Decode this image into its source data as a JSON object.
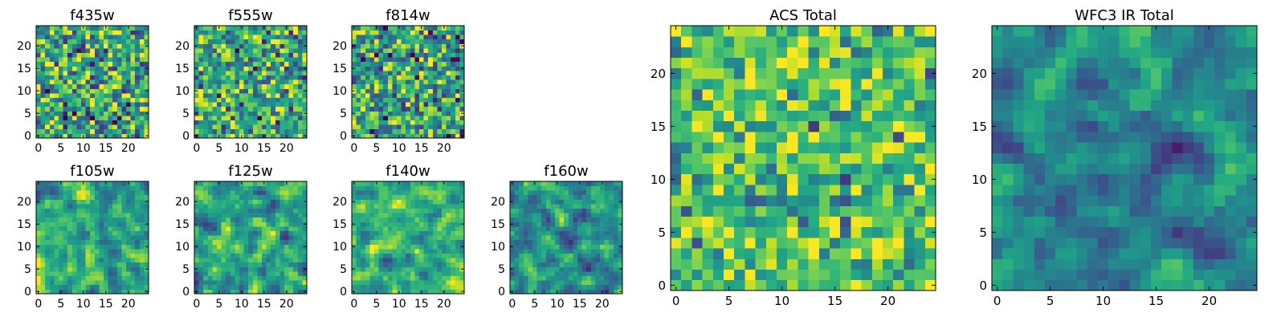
{
  "chart_data": [
    {
      "type": "heatmap",
      "title": "f435w",
      "xticks": [
        "0",
        "5",
        "10",
        "15",
        "20"
      ],
      "yticks": [
        "0",
        "5",
        "10",
        "15",
        "20"
      ],
      "xlim": [
        -0.5,
        24.5
      ],
      "ylim": [
        -0.5,
        24.5
      ],
      "colormap": "viridis",
      "vrange": [
        -3,
        3
      ],
      "grid": false
    },
    {
      "type": "heatmap",
      "title": "f555w",
      "xticks": [
        "0",
        "5",
        "10",
        "15",
        "20"
      ],
      "yticks": [
        "0",
        "5",
        "10",
        "15",
        "20"
      ],
      "xlim": [
        -0.5,
        24.5
      ],
      "ylim": [
        -0.5,
        24.5
      ],
      "colormap": "viridis",
      "vrange": [
        -3,
        3
      ],
      "grid": false
    },
    {
      "type": "heatmap",
      "title": "f814w",
      "xticks": [
        "0",
        "5",
        "10",
        "15",
        "20"
      ],
      "yticks": [
        "0",
        "5",
        "10",
        "15",
        "20"
      ],
      "xlim": [
        -0.5,
        24.5
      ],
      "ylim": [
        -0.5,
        24.5
      ],
      "colormap": "viridis",
      "vrange": [
        -3,
        3
      ],
      "grid": false
    },
    {
      "type": "heatmap",
      "title": "f105w",
      "xticks": [
        "0",
        "5",
        "10",
        "15",
        "20"
      ],
      "yticks": [
        "0",
        "5",
        "10",
        "15",
        "20"
      ],
      "xlim": [
        -0.5,
        24.5
      ],
      "ylim": [
        -0.5,
        24.5
      ],
      "colormap": "viridis",
      "vrange": [
        -3,
        3
      ],
      "grid": false
    },
    {
      "type": "heatmap",
      "title": "f125w",
      "xticks": [
        "0",
        "5",
        "10",
        "15",
        "20"
      ],
      "yticks": [
        "0",
        "5",
        "10",
        "15",
        "20"
      ],
      "xlim": [
        -0.5,
        24.5
      ],
      "ylim": [
        -0.5,
        24.5
      ],
      "colormap": "viridis",
      "vrange": [
        -3,
        3
      ],
      "grid": false
    },
    {
      "type": "heatmap",
      "title": "f140w",
      "xticks": [
        "0",
        "5",
        "10",
        "15",
        "20"
      ],
      "yticks": [
        "0",
        "5",
        "10",
        "15",
        "20"
      ],
      "xlim": [
        -0.5,
        24.5
      ],
      "ylim": [
        -0.5,
        24.5
      ],
      "colormap": "viridis",
      "vrange": [
        -3,
        3
      ],
      "grid": false
    },
    {
      "type": "heatmap",
      "title": "f160w",
      "xticks": [
        "0",
        "5",
        "10",
        "15",
        "20"
      ],
      "yticks": [
        "0",
        "5",
        "10",
        "15",
        "20"
      ],
      "xlim": [
        -0.5,
        24.5
      ],
      "ylim": [
        -0.5,
        24.5
      ],
      "colormap": "viridis",
      "vrange": [
        -3,
        3
      ],
      "grid": false
    },
    {
      "type": "heatmap",
      "title": "ACS Total",
      "xticks": [
        "0",
        "5",
        "10",
        "15",
        "20"
      ],
      "yticks": [
        "0",
        "5",
        "10",
        "15",
        "20"
      ],
      "xlim": [
        -0.5,
        24.5
      ],
      "ylim": [
        -0.5,
        24.5
      ],
      "colormap": "viridis",
      "vrange": [
        -3,
        3
      ],
      "grid": false
    },
    {
      "type": "heatmap",
      "title": "WFC3 IR Total",
      "xticks": [
        "0",
        "5",
        "10",
        "15",
        "20"
      ],
      "yticks": [
        "0",
        "5",
        "10",
        "15",
        "20"
      ],
      "xlim": [
        -0.5,
        24.5
      ],
      "ylim": [
        -0.5,
        24.5
      ],
      "colormap": "viridis",
      "vrange": [
        -3,
        3
      ],
      "grid": false
    }
  ]
}
